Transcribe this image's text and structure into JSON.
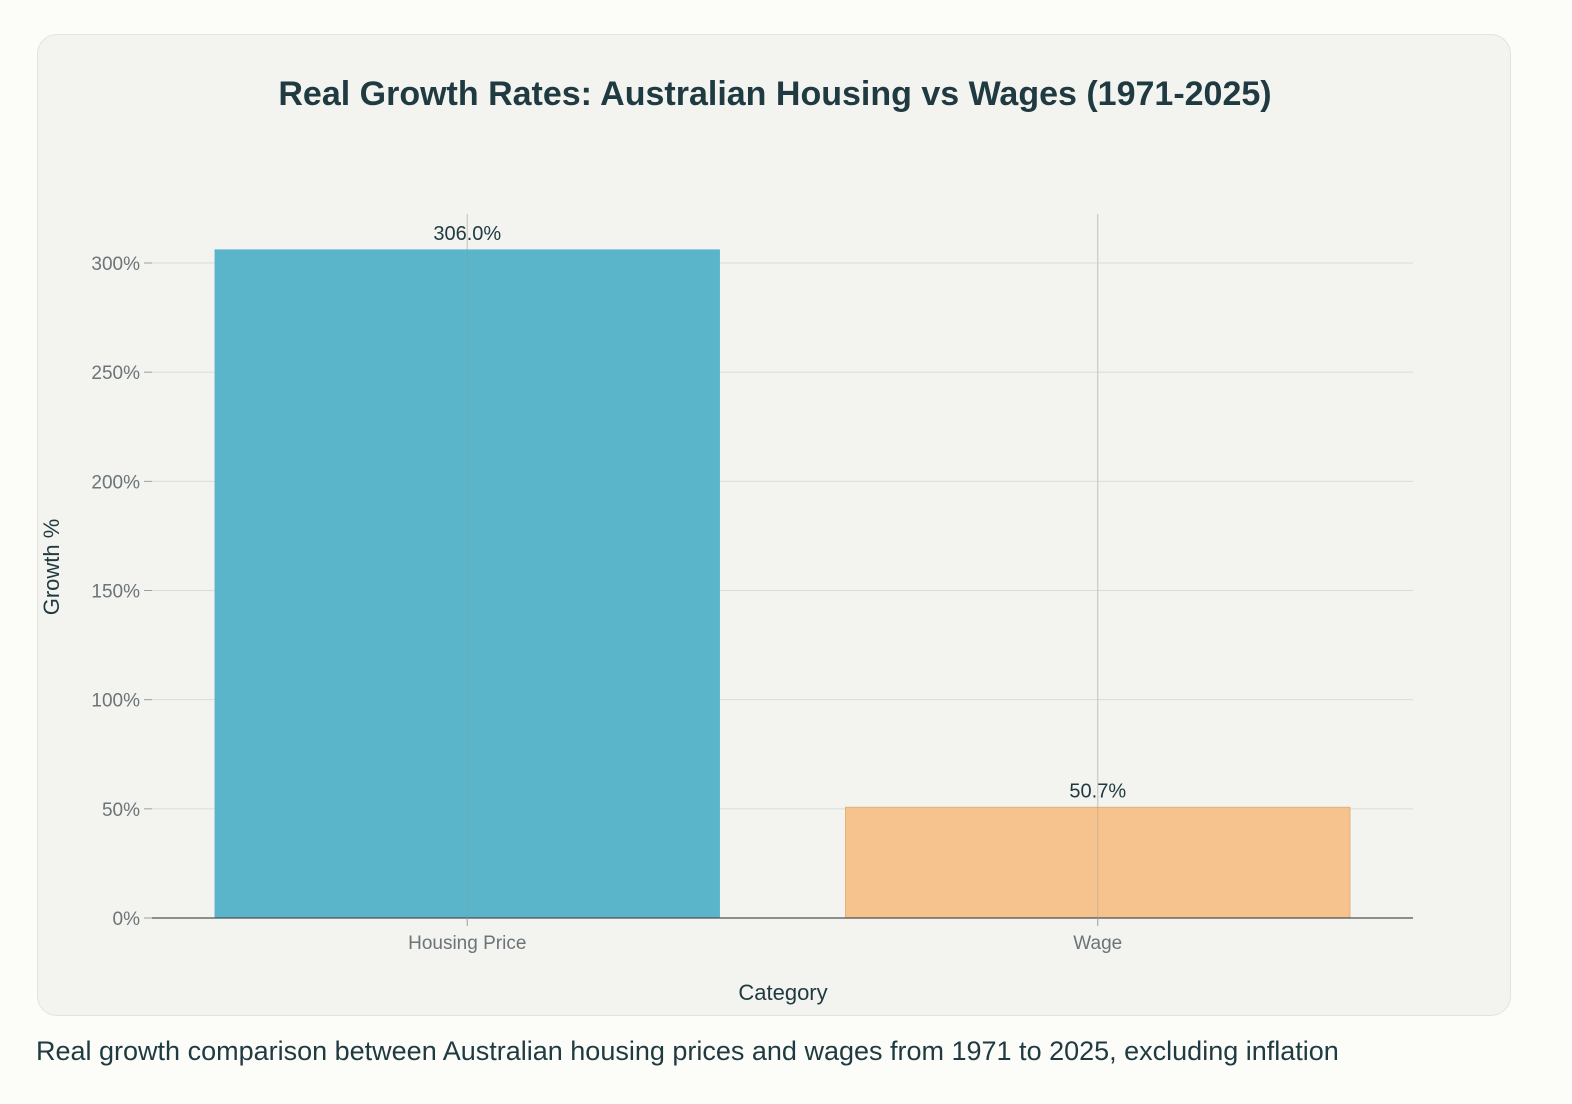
{
  "chart_data": {
    "type": "bar",
    "title": "Real Growth Rates: Australian Housing vs Wages (1971-2025)",
    "xlabel": "Category",
    "ylabel": "Growth %",
    "categories": [
      "Housing Price",
      "Wage"
    ],
    "values": [
      306.0,
      50.7
    ],
    "data_labels": [
      "306.0%",
      "50.7%"
    ],
    "colors": [
      "#5ab4ca",
      "#f6c38f"
    ],
    "ylim": [
      0,
      322
    ],
    "yticks": [
      0,
      50,
      100,
      150,
      200,
      250,
      300
    ],
    "ytick_labels": [
      "0%",
      "50%",
      "100%",
      "150%",
      "200%",
      "250%",
      "300%"
    ],
    "grid": true,
    "legend": false
  },
  "caption": "Real growth comparison between Australian housing prices and wages from 1971 to 2025, excluding inflation"
}
